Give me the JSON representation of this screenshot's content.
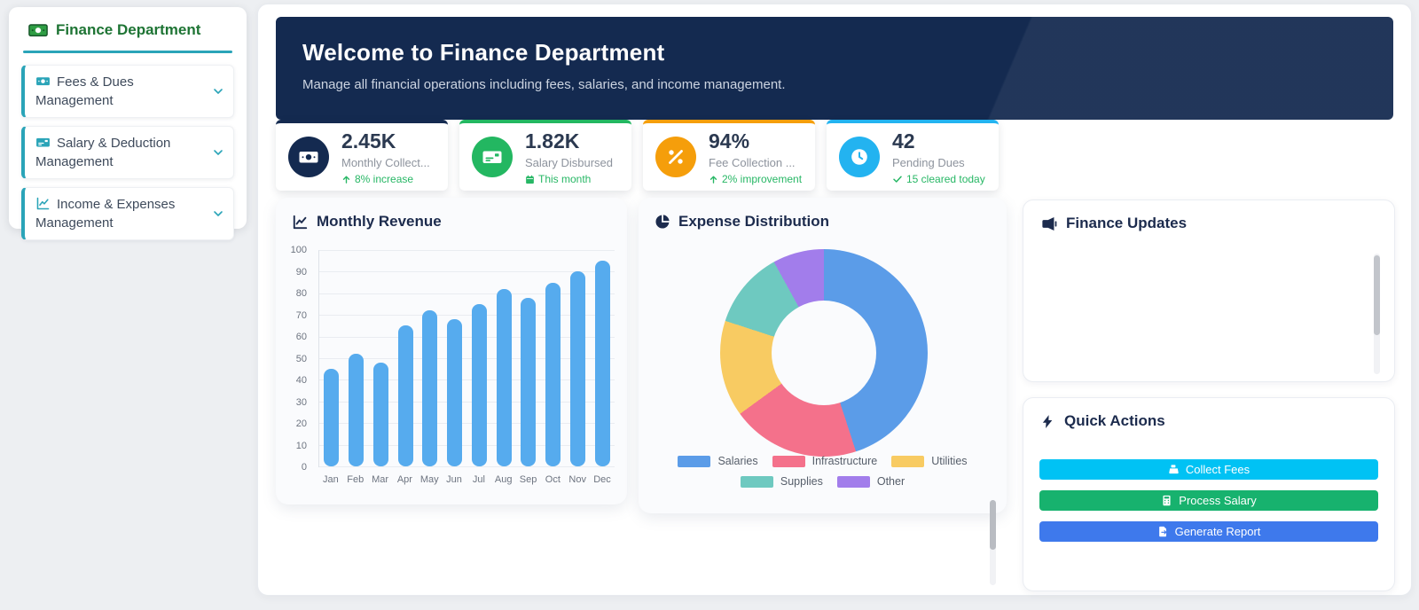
{
  "sidebar": {
    "title": "Finance Department",
    "items": [
      {
        "label": "Fees & Dues Management",
        "icon": "money-bill-icon"
      },
      {
        "label": "Salary & Deduction Management",
        "icon": "money-check-icon"
      },
      {
        "label": "Income & Expenses Management",
        "icon": "chart-line-icon"
      }
    ],
    "accent_color": "#2aa4b8",
    "title_color": "#1e7434"
  },
  "banner": {
    "title": "Welcome to Finance Department",
    "subtitle": "Manage all financial operations including fees, salaries, and income management.",
    "bg_color": "#142a50"
  },
  "stats": [
    {
      "value": "2.45K",
      "label": "Monthly Collect...",
      "trend": "8% increase",
      "trend_icon": "arrow-up-icon",
      "icon": "money-bill-icon",
      "accent": "#142a50"
    },
    {
      "value": "1.82K",
      "label": "Salary Disbursed",
      "trend": "This month",
      "trend_icon": "calendar-icon",
      "icon": "money-check-icon",
      "accent": "#23b761"
    },
    {
      "value": "94%",
      "label": "Fee Collection ...",
      "trend": "2% improvement",
      "trend_icon": "arrow-up-icon",
      "icon": "percent-icon",
      "accent": "#f59e0b"
    },
    {
      "value": "42",
      "label": "Pending Dues",
      "trend": "15 cleared today",
      "trend_icon": "check-icon",
      "icon": "clock-icon",
      "accent": "#23b3f0"
    }
  ],
  "trend_color": "#27b765",
  "updates_card": {
    "title": "Finance Updates",
    "icon": "megaphone-icon"
  },
  "actions_card": {
    "title": "Quick Actions",
    "icon": "bolt-icon",
    "buttons": [
      {
        "label": "Collect Fees",
        "icon": "cash-register-icon",
        "color": "#00c2f4"
      },
      {
        "label": "Process Salary",
        "icon": "calculator-icon",
        "color": "#17b26e"
      },
      {
        "label": "Generate Report",
        "icon": "file-export-icon",
        "color": "#3e79ec"
      }
    ]
  },
  "chart_data": [
    {
      "type": "bar",
      "title": "Monthly Revenue",
      "title_icon": "chart-line-icon",
      "categories": [
        "Jan",
        "Feb",
        "Mar",
        "Apr",
        "May",
        "Jun",
        "Jul",
        "Aug",
        "Sep",
        "Oct",
        "Nov",
        "Dec"
      ],
      "values": [
        45,
        52,
        48,
        65,
        72,
        68,
        75,
        82,
        78,
        85,
        90,
        95
      ],
      "xlabel": "",
      "ylabel": "",
      "ylim": [
        0,
        100
      ],
      "ytick_step": 10,
      "bar_color": "#56abee",
      "grid": true,
      "legend_position": "none"
    },
    {
      "type": "pie",
      "title": "Expense Distribution",
      "title_icon": "pie-chart-icon",
      "labels": [
        "Salaries",
        "Infrastructure",
        "Utilities",
        "Supplies",
        "Other"
      ],
      "values": [
        45,
        20,
        15,
        12,
        8
      ],
      "colors": [
        "#5b9ce8",
        "#f4718b",
        "#f8cb62",
        "#6ec9c0",
        "#a27deb"
      ],
      "donut": true,
      "legend_position": "bottom"
    }
  ]
}
